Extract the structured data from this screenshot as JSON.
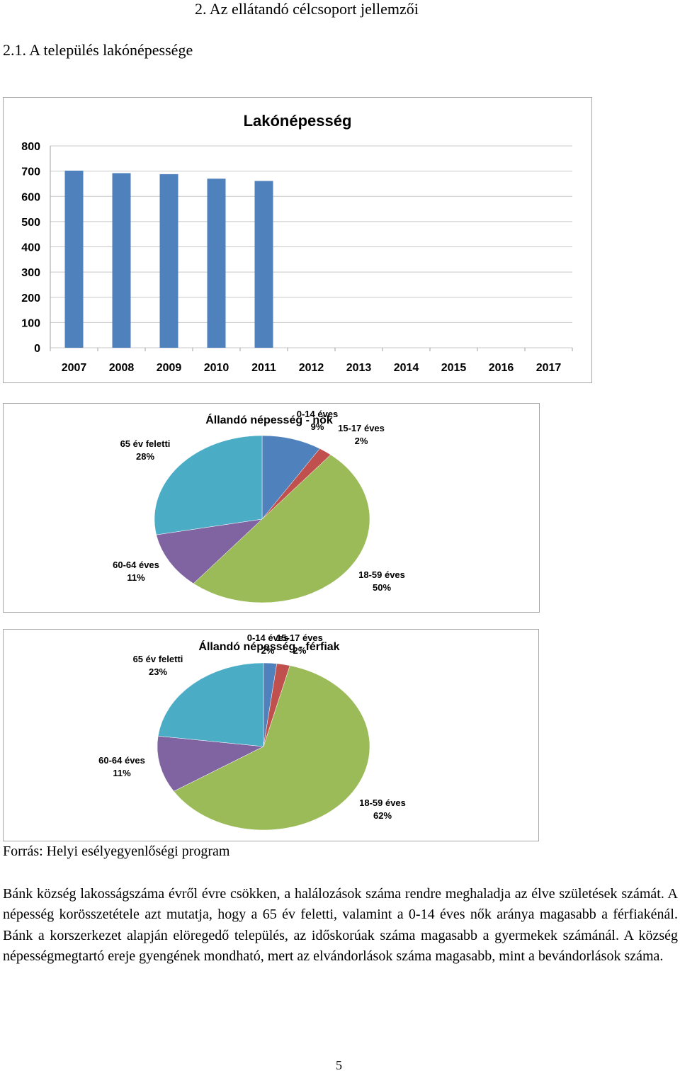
{
  "headings": {
    "main": "2. Az ellátandó célcsoport jellemzői",
    "sub": "2.1. A település lakónépessége"
  },
  "chart_data": [
    {
      "type": "bar",
      "title": "Lakónépesség",
      "categories": [
        "2007",
        "2008",
        "2009",
        "2010",
        "2011",
        "2012",
        "2013",
        "2014",
        "2015",
        "2016",
        "2017"
      ],
      "values": [
        702,
        692,
        688,
        670,
        661,
        null,
        null,
        null,
        null,
        null,
        null
      ],
      "yticks": [
        "0",
        "100",
        "200",
        "300",
        "400",
        "500",
        "600",
        "700",
        "800"
      ],
      "ylim": [
        0,
        800
      ],
      "grid": true,
      "color": "#4f81bd"
    },
    {
      "type": "pie",
      "title": "Állandó népesség - nők",
      "slices": [
        {
          "label": "0-14 éves",
          "pct_label": "9%",
          "value": 9,
          "color": "#4f81bd"
        },
        {
          "label": "15-17 éves",
          "pct_label": "2%",
          "value": 2,
          "color": "#c0504d"
        },
        {
          "label": "18-59 éves",
          "pct_label": "50%",
          "value": 50,
          "color": "#9bbb59"
        },
        {
          "label": "60-64 éves",
          "pct_label": "11%",
          "value": 11,
          "color": "#8064a2"
        },
        {
          "label": "65 év feletti",
          "pct_label": "28%",
          "value": 28,
          "color": "#4bacc6"
        }
      ]
    },
    {
      "type": "pie",
      "title": "Állandó népesség - férfiak",
      "slices": [
        {
          "label": "0-14 éves",
          "pct_label": "2%",
          "value": 2,
          "color": "#4f81bd"
        },
        {
          "label": "15-17 éves",
          "pct_label": "2%",
          "value": 2,
          "color": "#c0504d"
        },
        {
          "label": "18-59 éves",
          "pct_label": "62%",
          "value": 62,
          "color": "#9bbb59"
        },
        {
          "label": "60-64 éves",
          "pct_label": "11%",
          "value": 11,
          "color": "#8064a2"
        },
        {
          "label": "65 év feletti",
          "pct_label": "23%",
          "value": 23,
          "color": "#4bacc6"
        }
      ]
    }
  ],
  "source": "Forrás: Helyi esélyegyenlőségi program",
  "paragraph": "Bánk község lakosságszáma évről évre csökken, a halálozások száma rendre meghaladja az élve születések számát. A népesség korösszetétele azt mutatja, hogy a 65 év feletti, valamint a 0-14 éves nők aránya magasabb a férfiakénál. Bánk a korszerkezet alapján elöregedő település, az időskorúak száma magasabb a gyermekek számánál. A község népességmegtartó ereje gyengének mondható, mert az elvándorlások száma magasabb, mint a bevándorlások száma.",
  "page_number": "5"
}
